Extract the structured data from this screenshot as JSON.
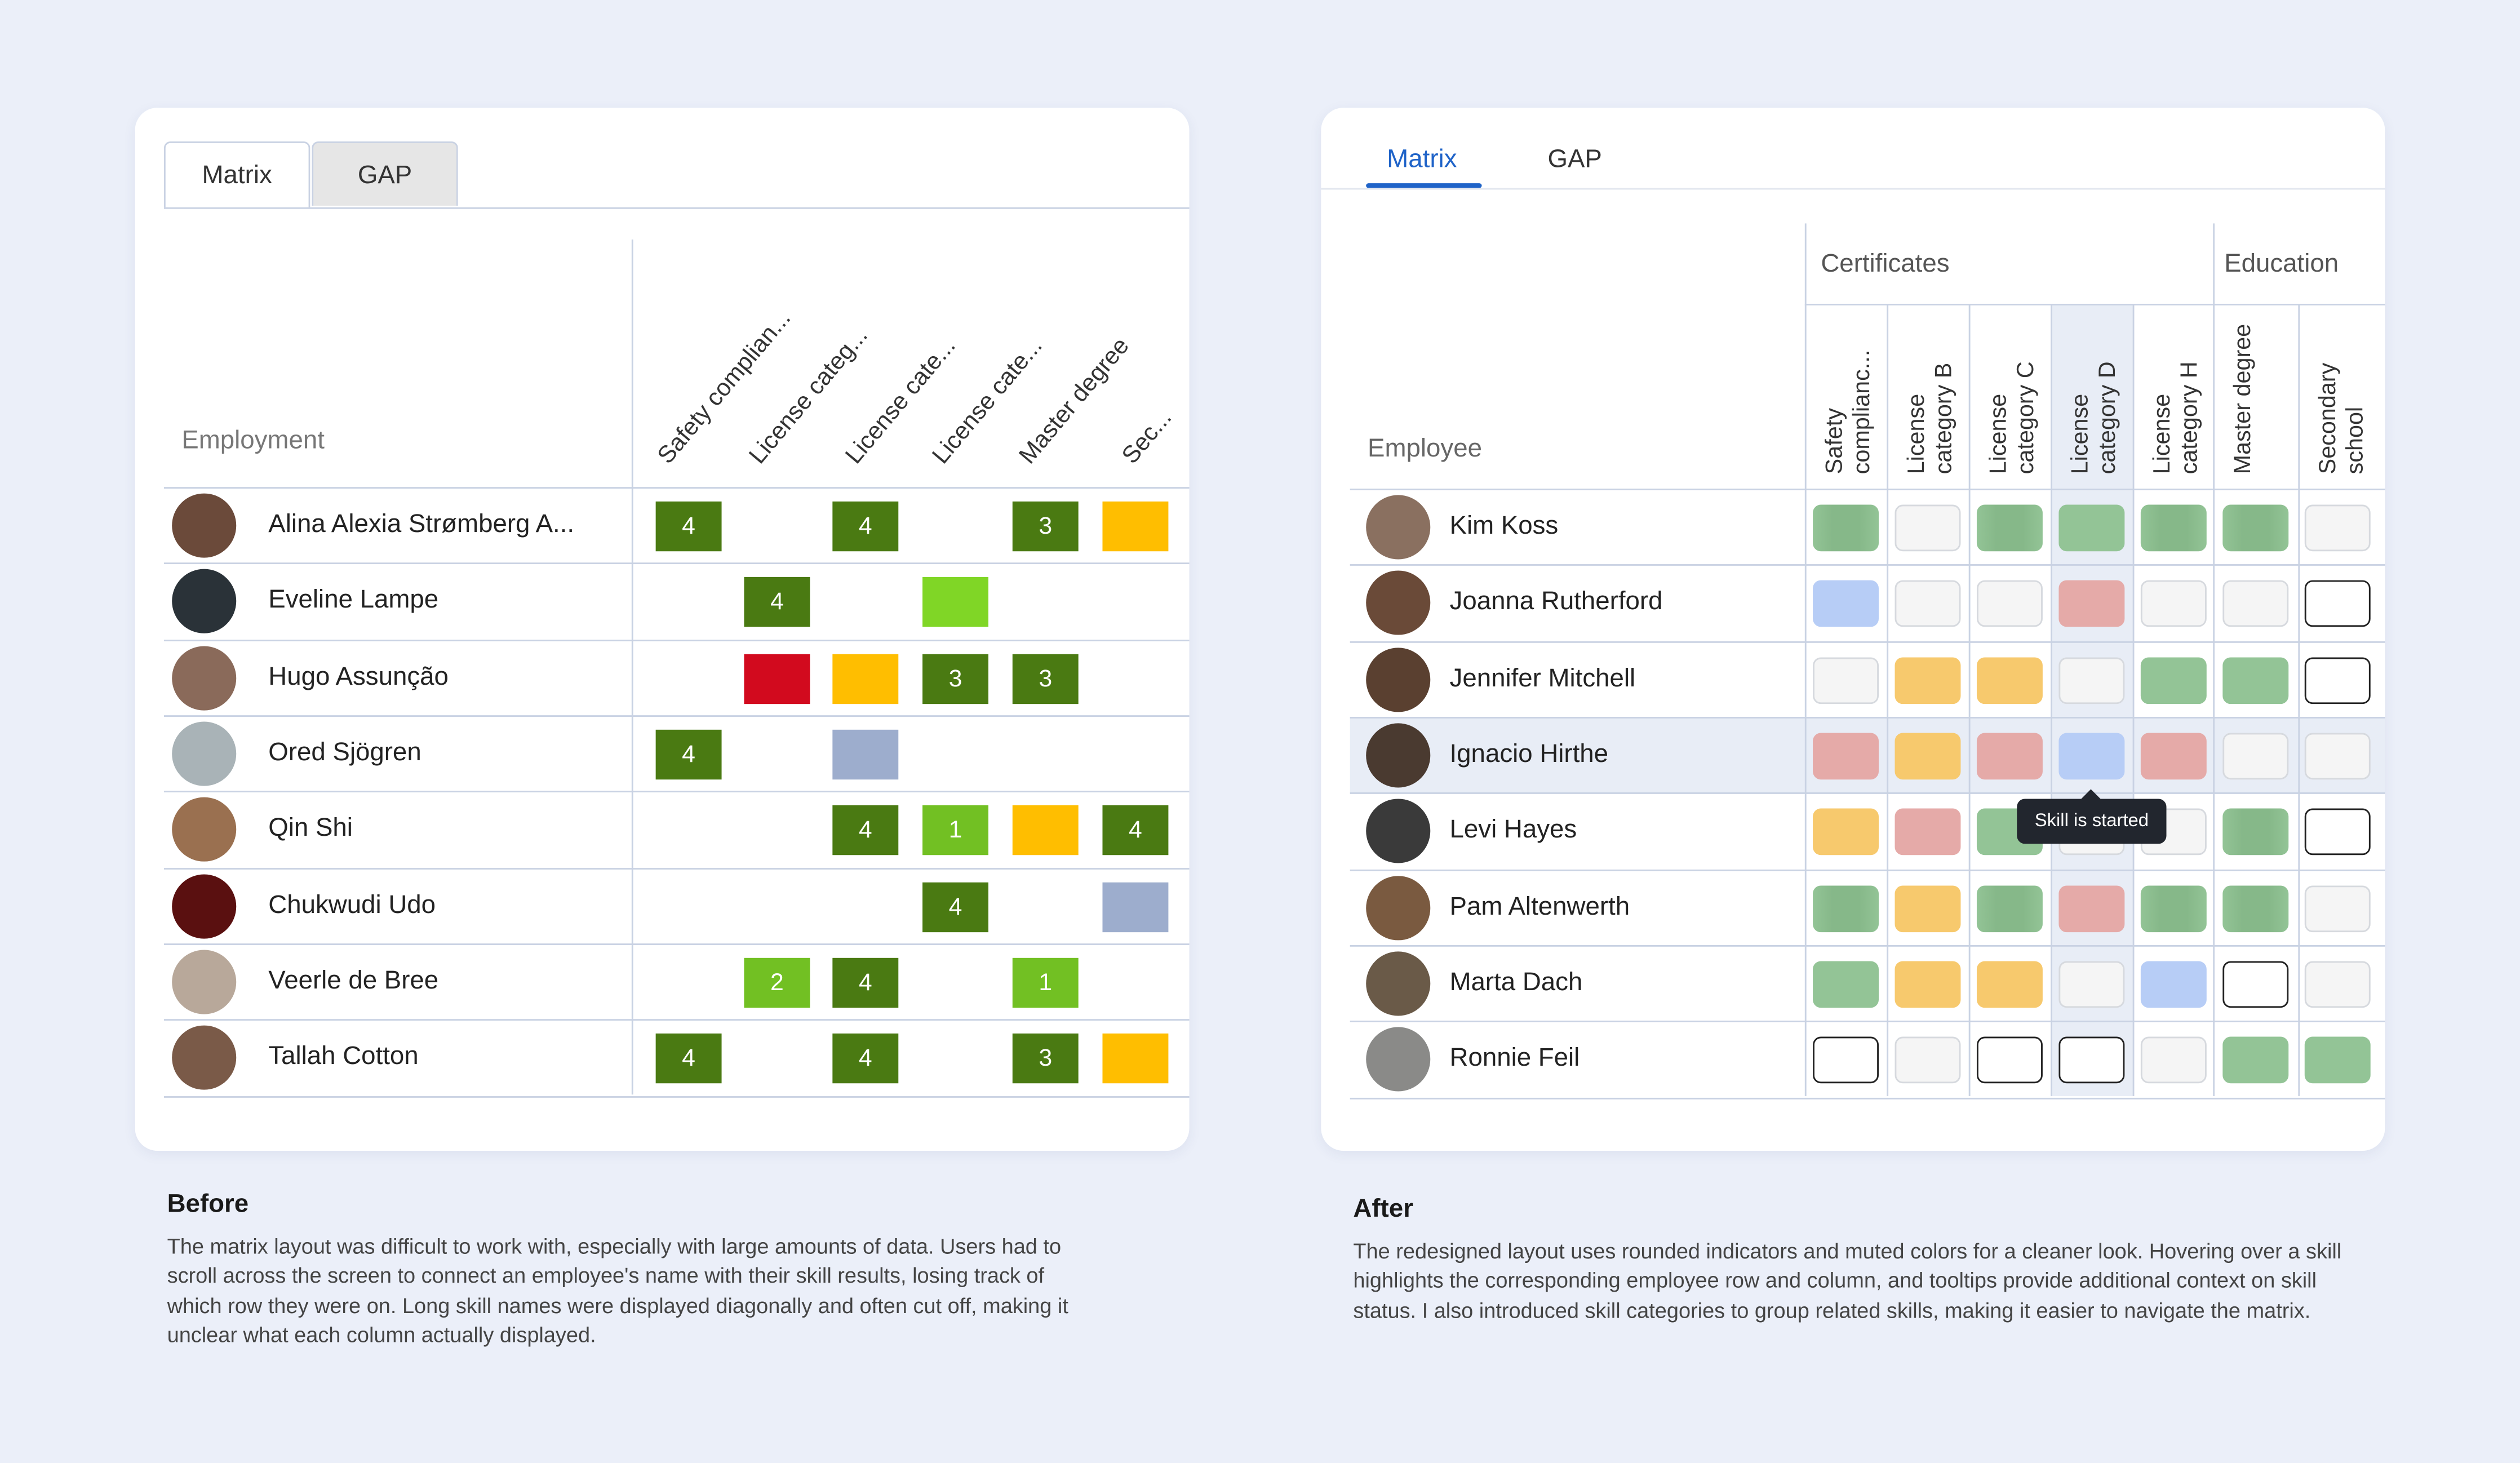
{
  "colors": {
    "page_bg": "#ebeff9",
    "accent": "#1f63c8",
    "old_dark_green": "#4a7a12",
    "old_light_green": "#72c023",
    "old_bright_green": "#80d626",
    "old_red": "#d20a1e",
    "old_yellow": "#ffbe00",
    "old_grayblue": "#9dadcd",
    "new_green": "#93c496",
    "new_yellow": "#f7c96d",
    "new_red": "#e5aaa8",
    "new_blue": "#b7cdf6",
    "new_empty": "#f5f5f5"
  },
  "before": {
    "tabs": [
      "Matrix",
      "GAP"
    ],
    "column_header": "Employment",
    "skill_headers": [
      "Safety complian...",
      "License categ...",
      "License cate...",
      "License cate...",
      "Master degree",
      "Sec..."
    ],
    "rows": [
      {
        "name": "Alina Alexia Strømberg A...",
        "avatar": "#6b4a3a",
        "cells": [
          {
            "col": 0,
            "v": "4",
            "c": "dg"
          },
          {
            "col": 2,
            "v": "4",
            "c": "dg"
          },
          {
            "col": 4,
            "v": "3",
            "c": "dg"
          },
          {
            "col": 5,
            "v": "",
            "c": "y"
          }
        ]
      },
      {
        "name": "Eveline Lampe",
        "avatar": "#2a3238",
        "cells": [
          {
            "col": 1,
            "v": "4",
            "c": "dg"
          },
          {
            "col": 3,
            "v": "",
            "c": "bg"
          }
        ]
      },
      {
        "name": "Hugo Assunção",
        "avatar": "#8a6a5a",
        "cells": [
          {
            "col": 1,
            "v": "",
            "c": "r"
          },
          {
            "col": 2,
            "v": "",
            "c": "y"
          },
          {
            "col": 3,
            "v": "3",
            "c": "dg"
          },
          {
            "col": 4,
            "v": "3",
            "c": "dg"
          }
        ]
      },
      {
        "name": "Ored Sjögren",
        "avatar": "#a9b3b7",
        "cells": [
          {
            "col": 0,
            "v": "4",
            "c": "dg"
          },
          {
            "col": 2,
            "v": "",
            "c": "gb"
          }
        ]
      },
      {
        "name": "Qin Shi",
        "avatar": "#9a7050",
        "cells": [
          {
            "col": 2,
            "v": "4",
            "c": "dg"
          },
          {
            "col": 3,
            "v": "1",
            "c": "lg"
          },
          {
            "col": 4,
            "v": "",
            "c": "y"
          },
          {
            "col": 5,
            "v": "4",
            "c": "dg"
          }
        ]
      },
      {
        "name": "Chukwudi Udo",
        "avatar": "#5a1010",
        "cells": [
          {
            "col": 3,
            "v": "4",
            "c": "dg"
          },
          {
            "col": 5,
            "v": "",
            "c": "gb"
          }
        ]
      },
      {
        "name": "Veerle de Bree",
        "avatar": "#b8a89a",
        "cells": [
          {
            "col": 1,
            "v": "2",
            "c": "lg"
          },
          {
            "col": 2,
            "v": "4",
            "c": "dg"
          },
          {
            "col": 4,
            "v": "1",
            "c": "lg"
          }
        ]
      },
      {
        "name": "Tallah Cotton",
        "avatar": "#7a5a48",
        "cells": [
          {
            "col": 0,
            "v": "4",
            "c": "dg"
          },
          {
            "col": 2,
            "v": "4",
            "c": "dg"
          },
          {
            "col": 4,
            "v": "3",
            "c": "dg"
          },
          {
            "col": 5,
            "v": "",
            "c": "y"
          }
        ]
      }
    ]
  },
  "after": {
    "tabs": [
      "Matrix",
      "GAP"
    ],
    "column_header": "Employee",
    "categories": [
      "Certificates",
      "Education"
    ],
    "skill_headers": [
      "Safety complianc...",
      "License category B",
      "License category C",
      "License category D",
      "License category H",
      "Master degree",
      "Secondary school"
    ],
    "tooltip": "Skill is started",
    "rows": [
      {
        "name": "Kim Koss",
        "avatar": "#8a7060",
        "cells": [
          "gs",
          "e",
          "gs",
          "g",
          "gs",
          "gs",
          "e"
        ]
      },
      {
        "name": "Joanna Rutherford",
        "avatar": "#6a4a38",
        "cells": [
          "b",
          "e",
          "e",
          "r",
          "e",
          "e",
          "o"
        ]
      },
      {
        "name": "Jennifer Mitchell",
        "avatar": "#5a4030",
        "cells": [
          "e",
          "y",
          "y",
          "e",
          "g",
          "g",
          "o"
        ]
      },
      {
        "name": "Ignacio Hirthe",
        "avatar": "#4a3a30",
        "cells": [
          "r",
          "y",
          "r",
          "b",
          "r",
          "e",
          "e"
        ]
      },
      {
        "name": "Levi Hayes",
        "avatar": "#3a3a3a",
        "cells": [
          "y",
          "r",
          "g",
          "e",
          "e",
          "gs",
          "o"
        ]
      },
      {
        "name": "Pam Altenwerth",
        "avatar": "#7a5a40",
        "cells": [
          "gs",
          "y",
          "gs",
          "r",
          "gs",
          "gs",
          "e"
        ]
      },
      {
        "name": "Marta Dach",
        "avatar": "#6a5a48",
        "cells": [
          "g",
          "y",
          "y",
          "e",
          "b",
          "o",
          "e"
        ]
      },
      {
        "name": "Ronnie Feil",
        "avatar": "#8a8a88",
        "cells": [
          "o",
          "e",
          "o",
          "o",
          "e",
          "g",
          "g"
        ]
      }
    ]
  },
  "captions": {
    "before_title": "Before",
    "before_text": "The matrix layout was difficult to work with, especially with large amounts of data. Users had to scroll across the screen to connect an employee's name with their skill results, losing track of which row they were on. Long skill names were displayed diagonally and often cut off, making it unclear what each column actually displayed.",
    "after_title": "After",
    "after_text": "The redesigned layout uses rounded indicators and muted colors for a cleaner look. Hovering over a skill highlights the corresponding employee row and column, and tooltips provide additional context on skill status. I also introduced skill categories to group related skills, making it easier to navigate the matrix."
  }
}
